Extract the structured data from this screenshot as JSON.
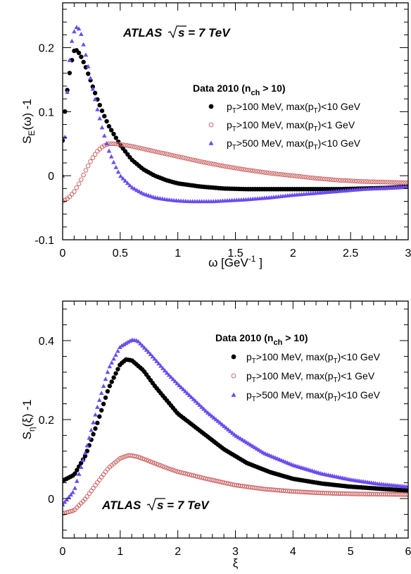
{
  "chart_data": [
    {
      "type": "scatter",
      "experiment_label": "ATLAS",
      "energy_label": "s = 7 TeV",
      "xlabel": {
        "main": "ω [GeV",
        "sup": "-1",
        "tail": " ]"
      },
      "ylabel": {
        "main": "S",
        "sub": "E",
        "tail": "(ω) -1"
      },
      "xlim": [
        0,
        3
      ],
      "ylim": [
        -0.1,
        0.27
      ],
      "x_ticks": [
        0,
        0.5,
        1,
        1.5,
        2,
        2.5,
        3
      ],
      "x_tick_labels": [
        "0",
        "0.5",
        "1",
        "1.5",
        "2",
        "2.5",
        "3"
      ],
      "y_ticks": [
        -0.1,
        0,
        0.1,
        0.2
      ],
      "y_tick_labels": [
        "-0.1",
        "0",
        "0.1",
        "0.2"
      ],
      "legend": {
        "title": {
          "main": "Data 2010 (n",
          "sub": "ch",
          "tail": " > 10)"
        },
        "entries": [
          {
            "p": "p",
            "sub1": "T",
            "mid": ">100 MeV, max(p",
            "sub2": "T",
            "end": ")<10 GeV"
          },
          {
            "p": "p",
            "sub1": "T",
            "mid": ">100 MeV, max(p",
            "sub2": "T",
            "end": ")<1 GeV"
          },
          {
            "p": "p",
            "sub1": "T",
            "mid": ">500 MeV, max(p",
            "sub2": "T",
            "end": ")<10 GeV"
          }
        ]
      },
      "series": [
        {
          "marker": "filled-circle",
          "color": "#000000",
          "x": [
            0,
            0.02,
            0.05,
            0.08,
            0.1,
            0.12,
            0.15,
            0.2,
            0.25,
            0.3,
            0.35,
            0.4,
            0.5,
            0.6,
            0.7,
            0.8,
            0.9,
            1.0,
            1.2,
            1.4,
            1.6,
            1.8,
            2.0,
            2.2,
            2.4,
            2.6,
            2.8,
            3.0
          ],
          "y": [
            0.055,
            0.1,
            0.15,
            0.18,
            0.195,
            0.196,
            0.19,
            0.17,
            0.145,
            0.12,
            0.098,
            0.078,
            0.048,
            0.025,
            0.01,
            0.0,
            -0.007,
            -0.012,
            -0.017,
            -0.02,
            -0.021,
            -0.021,
            -0.021,
            -0.021,
            -0.021,
            -0.02,
            -0.019,
            -0.017
          ]
        },
        {
          "marker": "open-circle",
          "color": "#c85a5a",
          "x": [
            0,
            0.05,
            0.1,
            0.15,
            0.2,
            0.25,
            0.3,
            0.35,
            0.4,
            0.45,
            0.5,
            0.6,
            0.7,
            0.8,
            1.0,
            1.2,
            1.4,
            1.6,
            1.8,
            2.0,
            2.2,
            2.4,
            2.6,
            2.8,
            3.0
          ],
          "y": [
            -0.04,
            -0.035,
            -0.025,
            -0.01,
            0.008,
            0.025,
            0.038,
            0.046,
            0.05,
            0.05,
            0.049,
            0.046,
            0.042,
            0.038,
            0.03,
            0.022,
            0.015,
            0.009,
            0.004,
            0.0,
            -0.004,
            -0.007,
            -0.009,
            -0.01,
            -0.011
          ]
        },
        {
          "marker": "filled-triangle",
          "color": "#6a4cf0",
          "x": [
            0,
            0.02,
            0.04,
            0.06,
            0.08,
            0.1,
            0.12,
            0.14,
            0.16,
            0.2,
            0.25,
            0.3,
            0.35,
            0.4,
            0.45,
            0.5,
            0.6,
            0.7,
            0.8,
            0.9,
            1.0,
            1.1,
            1.2,
            1.3,
            1.4,
            1.6,
            1.8,
            2.0,
            2.2,
            2.4,
            2.6,
            2.8,
            3.0
          ],
          "y": [
            0.0,
            0.06,
            0.13,
            0.18,
            0.21,
            0.225,
            0.232,
            0.23,
            0.222,
            0.19,
            0.145,
            0.105,
            0.07,
            0.04,
            0.018,
            0.0,
            -0.018,
            -0.028,
            -0.034,
            -0.037,
            -0.039,
            -0.04,
            -0.04,
            -0.04,
            -0.039,
            -0.037,
            -0.034,
            -0.03,
            -0.027,
            -0.024,
            -0.021,
            -0.019,
            -0.017
          ]
        }
      ]
    },
    {
      "type": "scatter",
      "experiment_label": "ATLAS",
      "energy_label": "s = 7 TeV",
      "xlabel": {
        "main": "ξ"
      },
      "ylabel": {
        "main": "S",
        "sub": "η",
        "tail": "(ξ) -1"
      },
      "xlim": [
        0,
        6
      ],
      "ylim": [
        -0.1,
        0.5
      ],
      "x_ticks": [
        0,
        1,
        2,
        3,
        4,
        5,
        6
      ],
      "x_tick_labels": [
        "0",
        "1",
        "2",
        "3",
        "4",
        "5",
        "6"
      ],
      "y_ticks": [
        0,
        0.2,
        0.4
      ],
      "y_tick_labels": [
        "0",
        "0.2",
        "0.4"
      ],
      "legend": {
        "title": {
          "main": "Data 2010 (n",
          "sub": "ch",
          "tail": " > 10)"
        },
        "entries": [
          {
            "p": "p",
            "sub1": "T",
            "mid": ">100 MeV, max(p",
            "sub2": "T",
            "end": ")<10 GeV"
          },
          {
            "p": "p",
            "sub1": "T",
            "mid": ">100 MeV, max(p",
            "sub2": "T",
            "end": ")<1 GeV"
          },
          {
            "p": "p",
            "sub1": "T",
            "mid": ">500 MeV, max(p",
            "sub2": "T",
            "end": ")<10 GeV"
          }
        ]
      },
      "series": [
        {
          "marker": "filled-circle",
          "color": "#000000",
          "x": [
            0,
            0.2,
            0.4,
            0.6,
            0.8,
            1.0,
            1.1,
            1.2,
            1.4,
            1.6,
            1.8,
            2.0,
            2.4,
            2.8,
            3.2,
            3.6,
            4.0,
            4.5,
            5.0,
            5.5,
            6.0
          ],
          "y": [
            0.045,
            0.06,
            0.11,
            0.19,
            0.28,
            0.34,
            0.352,
            0.35,
            0.325,
            0.285,
            0.25,
            0.215,
            0.17,
            0.125,
            0.09,
            0.067,
            0.05,
            0.038,
            0.03,
            0.025,
            0.02
          ]
        },
        {
          "marker": "open-circle",
          "color": "#c85a5a",
          "x": [
            0,
            0.2,
            0.4,
            0.6,
            0.8,
            1.0,
            1.15,
            1.3,
            1.5,
            1.8,
            2.0,
            2.5,
            3.0,
            3.5,
            4.0,
            4.5,
            5.0,
            5.5,
            6.0
          ],
          "y": [
            -0.038,
            -0.03,
            0.0,
            0.04,
            0.078,
            0.102,
            0.11,
            0.106,
            0.095,
            0.078,
            0.068,
            0.05,
            0.034,
            0.024,
            0.018,
            0.014,
            0.012,
            0.011,
            0.01
          ]
        },
        {
          "marker": "filled-triangle",
          "color": "#6a4cf0",
          "x": [
            0,
            0.2,
            0.4,
            0.6,
            0.8,
            1.0,
            1.2,
            1.3,
            1.5,
            1.8,
            2.0,
            2.5,
            3.0,
            3.5,
            4.0,
            4.5,
            5.0,
            5.5,
            6.0
          ],
          "y": [
            -0.015,
            0.02,
            0.12,
            0.23,
            0.33,
            0.385,
            0.402,
            0.4,
            0.37,
            0.32,
            0.29,
            0.22,
            0.16,
            0.115,
            0.085,
            0.063,
            0.048,
            0.037,
            0.03
          ]
        }
      ]
    }
  ]
}
